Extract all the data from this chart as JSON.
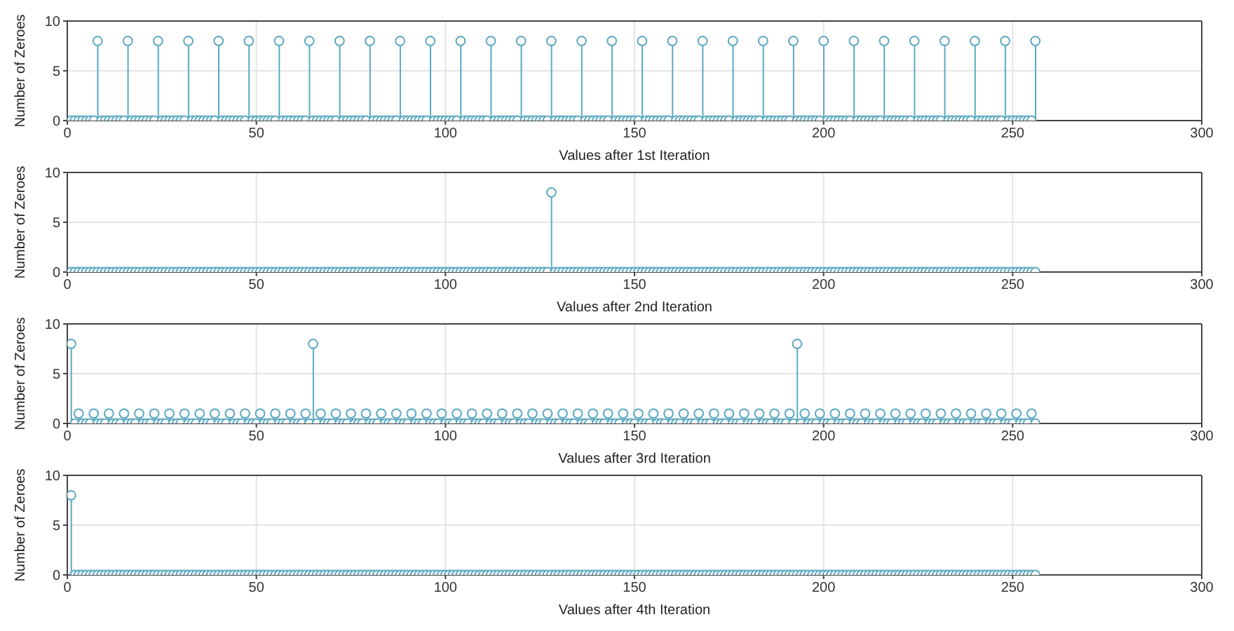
{
  "chart_data": [
    {
      "type": "lollipop",
      "xlabel": "Values after 1st Iteration",
      "ylabel": "Number of Zeroes",
      "xlim": [
        0,
        300
      ],
      "xticks": [
        0,
        50,
        100,
        150,
        200,
        250,
        300
      ],
      "ylim": [
        0,
        10
      ],
      "yticks": [
        0,
        5,
        10
      ],
      "grid": true,
      "marker": "circle",
      "color": "#5ba8c2",
      "x": [
        1,
        2,
        3,
        4,
        5,
        6,
        7,
        8,
        9,
        10,
        11,
        12,
        13,
        14,
        15,
        16,
        17,
        18,
        19,
        20,
        21,
        22,
        23,
        24,
        25,
        26,
        27,
        28,
        29,
        30,
        31,
        32,
        33,
        34,
        35,
        36,
        37,
        38,
        39,
        40,
        41,
        42,
        43,
        44,
        45,
        46,
        47,
        48,
        49,
        50,
        51,
        52,
        53,
        54,
        55,
        56,
        57,
        58,
        59,
        60,
        61,
        62,
        63,
        64,
        65,
        66,
        67,
        68,
        69,
        70,
        71,
        72,
        73,
        74,
        75,
        76,
        77,
        78,
        79,
        80,
        81,
        82,
        83,
        84,
        85,
        86,
        87,
        88,
        89,
        90,
        91,
        92,
        93,
        94,
        95,
        96,
        97,
        98,
        99,
        100,
        101,
        102,
        103,
        104,
        105,
        106,
        107,
        108,
        109,
        110,
        111,
        112,
        113,
        114,
        115,
        116,
        117,
        118,
        119,
        120,
        121,
        122,
        123,
        124,
        125,
        126,
        127,
        128,
        129,
        130,
        131,
        132,
        133,
        134,
        135,
        136,
        137,
        138,
        139,
        140,
        141,
        142,
        143,
        144,
        145,
        146,
        147,
        148,
        149,
        150,
        151,
        152,
        153,
        154,
        155,
        156,
        157,
        158,
        159,
        160,
        161,
        162,
        163,
        164,
        165,
        166,
        167,
        168,
        169,
        170,
        171,
        172,
        173,
        174,
        175,
        176,
        177,
        178,
        179,
        180,
        181,
        182,
        183,
        184,
        185,
        186,
        187,
        188,
        189,
        190,
        191,
        192,
        193,
        194,
        195,
        196,
        197,
        198,
        199,
        200,
        201,
        202,
        203,
        204,
        205,
        206,
        207,
        208,
        209,
        210,
        211,
        212,
        213,
        214,
        215,
        216,
        217,
        218,
        219,
        220,
        221,
        222,
        223,
        224,
        225,
        226,
        227,
        228,
        229,
        230,
        231,
        232,
        233,
        234,
        235,
        236,
        237,
        238,
        239,
        240,
        241,
        242,
        243,
        244,
        245,
        246,
        247,
        248,
        249,
        250,
        251,
        252,
        253,
        254,
        255,
        256
      ],
      "values": [
        0,
        0,
        0,
        0,
        0,
        0,
        0,
        8,
        0,
        0,
        0,
        0,
        0,
        0,
        0,
        8,
        0,
        0,
        0,
        0,
        0,
        0,
        0,
        8,
        0,
        0,
        0,
        0,
        0,
        0,
        0,
        8,
        0,
        0,
        0,
        0,
        0,
        0,
        0,
        8,
        0,
        0,
        0,
        0,
        0,
        0,
        0,
        8,
        0,
        0,
        0,
        0,
        0,
        0,
        0,
        8,
        0,
        0,
        0,
        0,
        0,
        0,
        0,
        8,
        0,
        0,
        0,
        0,
        0,
        0,
        0,
        8,
        0,
        0,
        0,
        0,
        0,
        0,
        0,
        8,
        0,
        0,
        0,
        0,
        0,
        0,
        0,
        8,
        0,
        0,
        0,
        0,
        0,
        0,
        0,
        8,
        0,
        0,
        0,
        0,
        0,
        0,
        0,
        8,
        0,
        0,
        0,
        0,
        0,
        0,
        0,
        8,
        0,
        0,
        0,
        0,
        0,
        0,
        0,
        8,
        0,
        0,
        0,
        0,
        0,
        0,
        0,
        8,
        0,
        0,
        0,
        0,
        0,
        0,
        0,
        8,
        0,
        0,
        0,
        0,
        0,
        0,
        0,
        8,
        0,
        0,
        0,
        0,
        0,
        0,
        0,
        8,
        0,
        0,
        0,
        0,
        0,
        0,
        0,
        8,
        0,
        0,
        0,
        0,
        0,
        0,
        0,
        8,
        0,
        0,
        0,
        0,
        0,
        0,
        0,
        8,
        0,
        0,
        0,
        0,
        0,
        0,
        0,
        8,
        0,
        0,
        0,
        0,
        0,
        0,
        0,
        8,
        0,
        0,
        0,
        0,
        0,
        0,
        0,
        8,
        0,
        0,
        0,
        0,
        0,
        0,
        0,
        8,
        0,
        0,
        0,
        0,
        0,
        0,
        0,
        8,
        0,
        0,
        0,
        0,
        0,
        0,
        0,
        8,
        0,
        0,
        0,
        0,
        0,
        0,
        0,
        8,
        0,
        0,
        0,
        0,
        0,
        0,
        0,
        8,
        0,
        0,
        0,
        0,
        0,
        0,
        0,
        8,
        0,
        0,
        0,
        0,
        0,
        0,
        0,
        8
      ]
    },
    {
      "type": "lollipop",
      "xlabel": "Values after 2nd Iteration",
      "ylabel": "Number of Zeroes",
      "xlim": [
        0,
        300
      ],
      "xticks": [
        0,
        50,
        100,
        150,
        200,
        250,
        300
      ],
      "ylim": [
        0,
        10
      ],
      "yticks": [
        0,
        5,
        10
      ],
      "grid": true,
      "marker": "circle",
      "color": "#5ba8c2",
      "x": [
        1,
        2,
        3,
        4,
        5,
        6,
        7,
        8,
        9,
        10,
        11,
        12,
        13,
        14,
        15,
        16,
        17,
        18,
        19,
        20,
        21,
        22,
        23,
        24,
        25,
        26,
        27,
        28,
        29,
        30,
        31,
        32,
        33,
        34,
        35,
        36,
        37,
        38,
        39,
        40,
        41,
        42,
        43,
        44,
        45,
        46,
        47,
        48,
        49,
        50,
        51,
        52,
        53,
        54,
        55,
        56,
        57,
        58,
        59,
        60,
        61,
        62,
        63,
        64,
        65,
        66,
        67,
        68,
        69,
        70,
        71,
        72,
        73,
        74,
        75,
        76,
        77,
        78,
        79,
        80,
        81,
        82,
        83,
        84,
        85,
        86,
        87,
        88,
        89,
        90,
        91,
        92,
        93,
        94,
        95,
        96,
        97,
        98,
        99,
        100,
        101,
        102,
        103,
        104,
        105,
        106,
        107,
        108,
        109,
        110,
        111,
        112,
        113,
        114,
        115,
        116,
        117,
        118,
        119,
        120,
        121,
        122,
        123,
        124,
        125,
        126,
        127,
        128,
        129,
        130,
        131,
        132,
        133,
        134,
        135,
        136,
        137,
        138,
        139,
        140,
        141,
        142,
        143,
        144,
        145,
        146,
        147,
        148,
        149,
        150,
        151,
        152,
        153,
        154,
        155,
        156,
        157,
        158,
        159,
        160,
        161,
        162,
        163,
        164,
        165,
        166,
        167,
        168,
        169,
        170,
        171,
        172,
        173,
        174,
        175,
        176,
        177,
        178,
        179,
        180,
        181,
        182,
        183,
        184,
        185,
        186,
        187,
        188,
        189,
        190,
        191,
        192,
        193,
        194,
        195,
        196,
        197,
        198,
        199,
        200,
        201,
        202,
        203,
        204,
        205,
        206,
        207,
        208,
        209,
        210,
        211,
        212,
        213,
        214,
        215,
        216,
        217,
        218,
        219,
        220,
        221,
        222,
        223,
        224,
        225,
        226,
        227,
        228,
        229,
        230,
        231,
        232,
        233,
        234,
        235,
        236,
        237,
        238,
        239,
        240,
        241,
        242,
        243,
        244,
        245,
        246,
        247,
        248,
        249,
        250,
        251,
        252,
        253,
        254,
        255,
        256
      ],
      "values": [
        0,
        0,
        0,
        0,
        0,
        0,
        0,
        0,
        0,
        0,
        0,
        0,
        0,
        0,
        0,
        0,
        0,
        0,
        0,
        0,
        0,
        0,
        0,
        0,
        0,
        0,
        0,
        0,
        0,
        0,
        0,
        0,
        0,
        0,
        0,
        0,
        0,
        0,
        0,
        0,
        0,
        0,
        0,
        0,
        0,
        0,
        0,
        0,
        0,
        0,
        0,
        0,
        0,
        0,
        0,
        0,
        0,
        0,
        0,
        0,
        0,
        0,
        0,
        0,
        0,
        0,
        0,
        0,
        0,
        0,
        0,
        0,
        0,
        0,
        0,
        0,
        0,
        0,
        0,
        0,
        0,
        0,
        0,
        0,
        0,
        0,
        0,
        0,
        0,
        0,
        0,
        0,
        0,
        0,
        0,
        0,
        0,
        0,
        0,
        0,
        0,
        0,
        0,
        0,
        0,
        0,
        0,
        0,
        0,
        0,
        0,
        0,
        0,
        0,
        0,
        0,
        0,
        0,
        0,
        0,
        0,
        0,
        0,
        0,
        0,
        0,
        0,
        8,
        0,
        0,
        0,
        0,
        0,
        0,
        0,
        0,
        0,
        0,
        0,
        0,
        0,
        0,
        0,
        0,
        0,
        0,
        0,
        0,
        0,
        0,
        0,
        0,
        0,
        0,
        0,
        0,
        0,
        0,
        0,
        0,
        0,
        0,
        0,
        0,
        0,
        0,
        0,
        0,
        0,
        0,
        0,
        0,
        0,
        0,
        0,
        0,
        0,
        0,
        0,
        0,
        0,
        0,
        0,
        0,
        0,
        0,
        0,
        0,
        0,
        0,
        0,
        0,
        0,
        0,
        0,
        0,
        0,
        0,
        0,
        0,
        0,
        0,
        0,
        0,
        0,
        0,
        0,
        0,
        0,
        0,
        0,
        0,
        0,
        0,
        0,
        0,
        0,
        0,
        0,
        0,
        0,
        0,
        0,
        0,
        0,
        0,
        0,
        0,
        0,
        0,
        0,
        0,
        0,
        0,
        0,
        0,
        0,
        0,
        0,
        0,
        0,
        0,
        0,
        0,
        0,
        0,
        0,
        0,
        0,
        0,
        0,
        0,
        0,
        0,
        0,
        0
      ]
    },
    {
      "type": "lollipop",
      "xlabel": "Values after 3rd Iteration",
      "ylabel": "Number of Zeroes",
      "xlim": [
        0,
        300
      ],
      "xticks": [
        0,
        50,
        100,
        150,
        200,
        250,
        300
      ],
      "ylim": [
        0,
        10
      ],
      "yticks": [
        0,
        5,
        10
      ],
      "grid": true,
      "marker": "circle",
      "color": "#5ba8c2",
      "x": [
        1,
        2,
        3,
        4,
        5,
        6,
        7,
        8,
        9,
        10,
        11,
        12,
        13,
        14,
        15,
        16,
        17,
        18,
        19,
        20,
        21,
        22,
        23,
        24,
        25,
        26,
        27,
        28,
        29,
        30,
        31,
        32,
        33,
        34,
        35,
        36,
        37,
        38,
        39,
        40,
        41,
        42,
        43,
        44,
        45,
        46,
        47,
        48,
        49,
        50,
        51,
        52,
        53,
        54,
        55,
        56,
        57,
        58,
        59,
        60,
        61,
        62,
        63,
        64,
        65,
        66,
        67,
        68,
        69,
        70,
        71,
        72,
        73,
        74,
        75,
        76,
        77,
        78,
        79,
        80,
        81,
        82,
        83,
        84,
        85,
        86,
        87,
        88,
        89,
        90,
        91,
        92,
        93,
        94,
        95,
        96,
        97,
        98,
        99,
        100,
        101,
        102,
        103,
        104,
        105,
        106,
        107,
        108,
        109,
        110,
        111,
        112,
        113,
        114,
        115,
        116,
        117,
        118,
        119,
        120,
        121,
        122,
        123,
        124,
        125,
        126,
        127,
        128,
        129,
        130,
        131,
        132,
        133,
        134,
        135,
        136,
        137,
        138,
        139,
        140,
        141,
        142,
        143,
        144,
        145,
        146,
        147,
        148,
        149,
        150,
        151,
        152,
        153,
        154,
        155,
        156,
        157,
        158,
        159,
        160,
        161,
        162,
        163,
        164,
        165,
        166,
        167,
        168,
        169,
        170,
        171,
        172,
        173,
        174,
        175,
        176,
        177,
        178,
        179,
        180,
        181,
        182,
        183,
        184,
        185,
        186,
        187,
        188,
        189,
        190,
        191,
        192,
        193,
        194,
        195,
        196,
        197,
        198,
        199,
        200,
        201,
        202,
        203,
        204,
        205,
        206,
        207,
        208,
        209,
        210,
        211,
        212,
        213,
        214,
        215,
        216,
        217,
        218,
        219,
        220,
        221,
        222,
        223,
        224,
        225,
        226,
        227,
        228,
        229,
        230,
        231,
        232,
        233,
        234,
        235,
        236,
        237,
        238,
        239,
        240,
        241,
        242,
        243,
        244,
        245,
        246,
        247,
        248,
        249,
        250,
        251,
        252,
        253,
        254,
        255,
        256
      ],
      "values": [
        8,
        0,
        1,
        0,
        0,
        0,
        1,
        0,
        0,
        0,
        1,
        0,
        0,
        0,
        1,
        0,
        0,
        0,
        1,
        0,
        0,
        0,
        1,
        0,
        0,
        0,
        1,
        0,
        0,
        0,
        1,
        0,
        0,
        0,
        1,
        0,
        0,
        0,
        1,
        0,
        0,
        0,
        1,
        0,
        0,
        0,
        1,
        0,
        0,
        0,
        1,
        0,
        0,
        0,
        1,
        0,
        0,
        0,
        1,
        0,
        0,
        0,
        1,
        0,
        8,
        0,
        1,
        0,
        0,
        0,
        1,
        0,
        0,
        0,
        1,
        0,
        0,
        0,
        1,
        0,
        0,
        0,
        1,
        0,
        0,
        0,
        1,
        0,
        0,
        0,
        1,
        0,
        0,
        0,
        1,
        0,
        0,
        0,
        1,
        0,
        0,
        0,
        1,
        0,
        0,
        0,
        1,
        0,
        0,
        0,
        1,
        0,
        0,
        0,
        1,
        0,
        0,
        0,
        1,
        0,
        0,
        0,
        1,
        0,
        0,
        0,
        1,
        0,
        0,
        0,
        1,
        0,
        0,
        0,
        1,
        0,
        0,
        0,
        1,
        0,
        0,
        0,
        1,
        0,
        0,
        0,
        1,
        0,
        0,
        0,
        1,
        0,
        0,
        0,
        1,
        0,
        0,
        0,
        1,
        0,
        0,
        0,
        1,
        0,
        0,
        0,
        1,
        0,
        0,
        0,
        1,
        0,
        0,
        0,
        1,
        0,
        0,
        0,
        1,
        0,
        0,
        0,
        1,
        0,
        0,
        0,
        1,
        0,
        0,
        0,
        1,
        0,
        8,
        0,
        1,
        0,
        0,
        0,
        1,
        0,
        0,
        0,
        1,
        0,
        0,
        0,
        1,
        0,
        0,
        0,
        1,
        0,
        0,
        0,
        1,
        0,
        0,
        0,
        1,
        0,
        0,
        0,
        1,
        0,
        0,
        0,
        1,
        0,
        0,
        0,
        1,
        0,
        0,
        0,
        1,
        0,
        0,
        0,
        1,
        0,
        0,
        0,
        1,
        0,
        0,
        0,
        1,
        0,
        0,
        0,
        1,
        0,
        0,
        0,
        1,
        0
      ]
    },
    {
      "type": "lollipop",
      "xlabel": "Values after 4th Iteration",
      "ylabel": "Number of Zeroes",
      "xlim": [
        0,
        300
      ],
      "xticks": [
        0,
        50,
        100,
        150,
        200,
        250,
        300
      ],
      "ylim": [
        0,
        10
      ],
      "yticks": [
        0,
        5,
        10
      ],
      "grid": true,
      "marker": "circle",
      "color": "#5ba8c2",
      "x": [
        1,
        2,
        3,
        4,
        5,
        6,
        7,
        8,
        9,
        10,
        11,
        12,
        13,
        14,
        15,
        16,
        17,
        18,
        19,
        20,
        21,
        22,
        23,
        24,
        25,
        26,
        27,
        28,
        29,
        30,
        31,
        32,
        33,
        34,
        35,
        36,
        37,
        38,
        39,
        40,
        41,
        42,
        43,
        44,
        45,
        46,
        47,
        48,
        49,
        50,
        51,
        52,
        53,
        54,
        55,
        56,
        57,
        58,
        59,
        60,
        61,
        62,
        63,
        64,
        65,
        66,
        67,
        68,
        69,
        70,
        71,
        72,
        73,
        74,
        75,
        76,
        77,
        78,
        79,
        80,
        81,
        82,
        83,
        84,
        85,
        86,
        87,
        88,
        89,
        90,
        91,
        92,
        93,
        94,
        95,
        96,
        97,
        98,
        99,
        100,
        101,
        102,
        103,
        104,
        105,
        106,
        107,
        108,
        109,
        110,
        111,
        112,
        113,
        114,
        115,
        116,
        117,
        118,
        119,
        120,
        121,
        122,
        123,
        124,
        125,
        126,
        127,
        128,
        129,
        130,
        131,
        132,
        133,
        134,
        135,
        136,
        137,
        138,
        139,
        140,
        141,
        142,
        143,
        144,
        145,
        146,
        147,
        148,
        149,
        150,
        151,
        152,
        153,
        154,
        155,
        156,
        157,
        158,
        159,
        160,
        161,
        162,
        163,
        164,
        165,
        166,
        167,
        168,
        169,
        170,
        171,
        172,
        173,
        174,
        175,
        176,
        177,
        178,
        179,
        180,
        181,
        182,
        183,
        184,
        185,
        186,
        187,
        188,
        189,
        190,
        191,
        192,
        193,
        194,
        195,
        196,
        197,
        198,
        199,
        200,
        201,
        202,
        203,
        204,
        205,
        206,
        207,
        208,
        209,
        210,
        211,
        212,
        213,
        214,
        215,
        216,
        217,
        218,
        219,
        220,
        221,
        222,
        223,
        224,
        225,
        226,
        227,
        228,
        229,
        230,
        231,
        232,
        233,
        234,
        235,
        236,
        237,
        238,
        239,
        240,
        241,
        242,
        243,
        244,
        245,
        246,
        247,
        248,
        249,
        250,
        251,
        252,
        253,
        254,
        255,
        256
      ],
      "values": [
        8,
        0,
        0,
        0,
        0,
        0,
        0,
        0,
        0,
        0,
        0,
        0,
        0,
        0,
        0,
        0,
        0,
        0,
        0,
        0,
        0,
        0,
        0,
        0,
        0,
        0,
        0,
        0,
        0,
        0,
        0,
        0,
        0,
        0,
        0,
        0,
        0,
        0,
        0,
        0,
        0,
        0,
        0,
        0,
        0,
        0,
        0,
        0,
        0,
        0,
        0,
        0,
        0,
        0,
        0,
        0,
        0,
        0,
        0,
        0,
        0,
        0,
        0,
        0,
        0,
        0,
        0,
        0,
        0,
        0,
        0,
        0,
        0,
        0,
        0,
        0,
        0,
        0,
        0,
        0,
        0,
        0,
        0,
        0,
        0,
        0,
        0,
        0,
        0,
        0,
        0,
        0,
        0,
        0,
        0,
        0,
        0,
        0,
        0,
        0,
        0,
        0,
        0,
        0,
        0,
        0,
        0,
        0,
        0,
        0,
        0,
        0,
        0,
        0,
        0,
        0,
        0,
        0,
        0,
        0,
        0,
        0,
        0,
        0,
        0,
        0,
        0,
        0,
        0,
        0,
        0,
        0,
        0,
        0,
        0,
        0,
        0,
        0,
        0,
        0,
        0,
        0,
        0,
        0,
        0,
        0,
        0,
        0,
        0,
        0,
        0,
        0,
        0,
        0,
        0,
        0,
        0,
        0,
        0,
        0,
        0,
        0,
        0,
        0,
        0,
        0,
        0,
        0,
        0,
        0,
        0,
        0,
        0,
        0,
        0,
        0,
        0,
        0,
        0,
        0,
        0,
        0,
        0,
        0,
        0,
        0,
        0,
        0,
        0,
        0,
        0,
        0,
        0,
        0,
        0,
        0,
        0,
        0,
        0,
        0,
        0,
        0,
        0,
        0,
        0,
        0,
        0,
        0,
        0,
        0,
        0,
        0,
        0,
        0,
        0,
        0,
        0,
        0,
        0,
        0,
        0,
        0,
        0,
        0,
        0,
        0,
        0,
        0,
        0,
        0,
        0,
        0,
        0,
        0,
        0,
        0,
        0,
        0,
        0,
        0,
        0,
        0,
        0,
        0,
        0,
        0,
        0,
        0,
        0,
        0,
        0,
        0,
        0,
        0,
        0,
        0
      ]
    }
  ]
}
